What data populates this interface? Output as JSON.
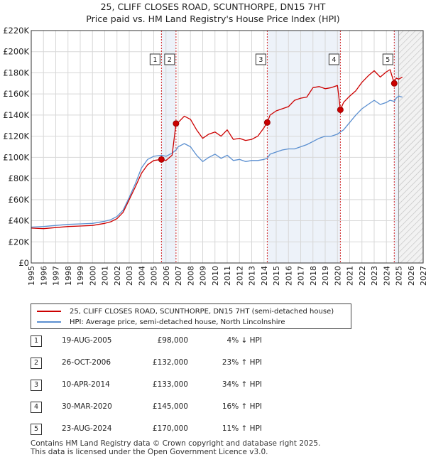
{
  "title_line1": "25, CLIFF CLOSES ROAD, SCUNTHORPE, DN15 7HT",
  "title_line2": "Price paid vs. HM Land Registry's House Price Index (HPI)",
  "colors": {
    "property": "#cc0000",
    "hpi": "#5b8fd0",
    "grid": "#d8d8d8",
    "band": "#e6ecf7",
    "marker_line": "#cc0000"
  },
  "chart_data": {
    "type": "line",
    "title": "Price paid vs. HM Land Registry's House Price Index (HPI)",
    "xlabel": "",
    "ylabel": "",
    "xlim": [
      1995,
      2027
    ],
    "ylim": [
      0,
      220000
    ],
    "y_ticks": [
      0,
      20000,
      40000,
      60000,
      80000,
      100000,
      120000,
      140000,
      160000,
      180000,
      200000,
      220000
    ],
    "y_tick_labels": [
      "£0",
      "£20K",
      "£40K",
      "£60K",
      "£80K",
      "£100K",
      "£120K",
      "£140K",
      "£160K",
      "£180K",
      "£200K",
      "£220K"
    ],
    "x_ticks": [
      1995,
      1996,
      1997,
      1998,
      1999,
      2000,
      2001,
      2002,
      2003,
      2004,
      2005,
      2006,
      2007,
      2008,
      2009,
      2010,
      2011,
      2012,
      2013,
      2014,
      2015,
      2016,
      2017,
      2018,
      2019,
      2020,
      2021,
      2022,
      2023,
      2024,
      2025,
      2026,
      2027
    ],
    "x_tick_labels": [
      "1995",
      "1996",
      "1997",
      "1998",
      "1999",
      "2000",
      "2001",
      "2002",
      "2003",
      "2004",
      "2005",
      "2006",
      "2007",
      "2008",
      "2009",
      "2010",
      "2011",
      "2012",
      "2013",
      "2014",
      "2015",
      "2016",
      "2017",
      "2018",
      "2019",
      "2020",
      "2021",
      "2022",
      "2023",
      "2024",
      "2025",
      "2026",
      "2027"
    ],
    "projection_start": 2025.0,
    "grid": true,
    "series": [
      {
        "name": "25, CLIFF CLOSES ROAD, SCUNTHORPE, DN15 7HT (semi-detached house)",
        "color": "#cc0000",
        "x": [
          1995.0,
          1996.0,
          1997.0,
          1998.0,
          1999.0,
          2000.0,
          2000.5,
          2001.0,
          2001.5,
          2002.0,
          2002.5,
          2003.0,
          2003.5,
          2004.0,
          2004.5,
          2005.0,
          2005.63,
          2006.0,
          2006.5,
          2006.82,
          2007.0,
          2007.5,
          2008.0,
          2008.5,
          2009.0,
          2009.5,
          2010.0,
          2010.5,
          2011.0,
          2011.5,
          2012.0,
          2012.5,
          2013.0,
          2013.5,
          2014.0,
          2014.27,
          2014.5,
          2015.0,
          2015.5,
          2016.0,
          2016.5,
          2017.0,
          2017.5,
          2018.0,
          2018.5,
          2019.0,
          2019.5,
          2020.0,
          2020.24,
          2020.5,
          2021.0,
          2021.5,
          2022.0,
          2022.5,
          2023.0,
          2023.5,
          2024.0,
          2024.3,
          2024.64,
          2024.8,
          2025.0,
          2025.3
        ],
        "y": [
          33000,
          32500,
          33500,
          34500,
          35000,
          35500,
          36500,
          37500,
          39000,
          42000,
          48000,
          60000,
          72000,
          85000,
          93000,
          97000,
          98000,
          97000,
          102000,
          132000,
          133000,
          139000,
          136000,
          126000,
          118000,
          122000,
          124000,
          120000,
          126000,
          117000,
          118000,
          116000,
          117000,
          120000,
          128000,
          133000,
          140000,
          144000,
          146000,
          148000,
          154000,
          156000,
          157000,
          166000,
          167000,
          165000,
          166000,
          168000,
          145000,
          152000,
          158000,
          163000,
          171000,
          177000,
          182000,
          176000,
          181000,
          183000,
          170000,
          175000,
          174000,
          176000
        ]
      },
      {
        "name": "HPI: Average price, semi-detached house, North Lincolnshire",
        "color": "#5b8fd0",
        "x": [
          1995.0,
          1996.0,
          1997.0,
          1998.0,
          1999.0,
          2000.0,
          2000.5,
          2001.0,
          2001.5,
          2002.0,
          2002.5,
          2003.0,
          2003.5,
          2004.0,
          2004.5,
          2005.0,
          2005.63,
          2006.0,
          2006.5,
          2006.82,
          2007.0,
          2007.5,
          2008.0,
          2008.5,
          2009.0,
          2009.5,
          2010.0,
          2010.5,
          2011.0,
          2011.5,
          2012.0,
          2012.5,
          2013.0,
          2013.5,
          2014.0,
          2014.27,
          2014.5,
          2015.0,
          2015.5,
          2016.0,
          2016.5,
          2017.0,
          2017.5,
          2018.0,
          2018.5,
          2019.0,
          2019.5,
          2020.0,
          2020.24,
          2020.5,
          2021.0,
          2021.5,
          2022.0,
          2022.5,
          2023.0,
          2023.5,
          2024.0,
          2024.3,
          2024.64,
          2024.8,
          2025.0,
          2025.3
        ],
        "y": [
          34000,
          34500,
          35500,
          36500,
          37000,
          37500,
          38500,
          39500,
          41000,
          44000,
          50000,
          62000,
          75000,
          90000,
          98000,
          101000,
          102000,
          101000,
          104000,
          107000,
          110000,
          113000,
          110000,
          102000,
          96000,
          100000,
          103000,
          99000,
          102000,
          97000,
          98000,
          96000,
          97000,
          97000,
          98000,
          99000,
          103000,
          105000,
          107000,
          108000,
          108000,
          110000,
          112000,
          115000,
          118000,
          120000,
          120000,
          122000,
          124000,
          126000,
          133000,
          140000,
          146000,
          150000,
          154000,
          150000,
          152000,
          154000,
          153000,
          156000,
          158000,
          157000
        ]
      }
    ],
    "sale_markers": [
      {
        "label": "1",
        "x": 2005.63,
        "y": 98000
      },
      {
        "label": "2",
        "x": 2006.82,
        "y": 132000
      },
      {
        "label": "3",
        "x": 2014.27,
        "y": 133000
      },
      {
        "label": "4",
        "x": 2020.24,
        "y": 145000
      },
      {
        "label": "5",
        "x": 2024.64,
        "y": 170000
      }
    ]
  },
  "legend": {
    "property_label": "25, CLIFF CLOSES ROAD, SCUNTHORPE, DN15 7HT (semi-detached house)",
    "hpi_label": "HPI: Average price, semi-detached house, North Lincolnshire"
  },
  "sales": [
    {
      "num": "1",
      "date": "19-AUG-2005",
      "price": "£98,000",
      "hpi": "4% ↓ HPI"
    },
    {
      "num": "2",
      "date": "26-OCT-2006",
      "price": "£132,000",
      "hpi": "23% ↑ HPI"
    },
    {
      "num": "3",
      "date": "10-APR-2014",
      "price": "£133,000",
      "hpi": "34% ↑ HPI"
    },
    {
      "num": "4",
      "date": "30-MAR-2020",
      "price": "£145,000",
      "hpi": "16% ↑ HPI"
    },
    {
      "num": "5",
      "date": "23-AUG-2024",
      "price": "£170,000",
      "hpi": "11% ↑ HPI"
    }
  ],
  "footer_line1": "Contains HM Land Registry data © Crown copyright and database right 2025.",
  "footer_line2": "This data is licensed under the Open Government Licence v3.0."
}
